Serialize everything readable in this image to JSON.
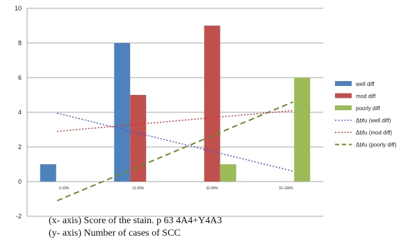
{
  "chart_data": {
    "type": "bar",
    "categories": [
      "0-10%",
      "11-30%",
      "31-50%",
      "51-100%"
    ],
    "ylim": [
      -2,
      10
    ],
    "yticks": [
      -2,
      0,
      2,
      4,
      6,
      8,
      10
    ],
    "grid": true,
    "legend_position": "right",
    "series": [
      {
        "name": "well diff",
        "values": [
          1,
          8,
          0,
          0
        ],
        "color": "#4f81bd"
      },
      {
        "name": "mod diff",
        "values": [
          0,
          5,
          9,
          0
        ],
        "color": "#c0504d"
      },
      {
        "name": "poorly diff",
        "values": [
          0,
          0,
          1,
          6
        ],
        "color": "#9bbb59"
      }
    ],
    "trendlines": [
      {
        "name": "Δbfu (well diff)",
        "series": "well diff",
        "style": "dotted",
        "color": "#4f4fe0",
        "start": 3.95,
        "end": 0.6
      },
      {
        "name": "Δbfu (mod diff)",
        "series": "mod diff",
        "style": "dotted",
        "color": "#e03030",
        "start": 2.9,
        "end": 4.1
      },
      {
        "name": "Δbfu (poorly diff)",
        "series": "poorly diff",
        "style": "dashed",
        "color": "#6b8c2a",
        "start": -1.1,
        "end": 4.6
      }
    ]
  },
  "caption": {
    "x_axis": "(x- axis) Score of the stain. p 63 4A4+Y4A3",
    "y_axis": "(y- axis) Number of cases of SCC"
  }
}
